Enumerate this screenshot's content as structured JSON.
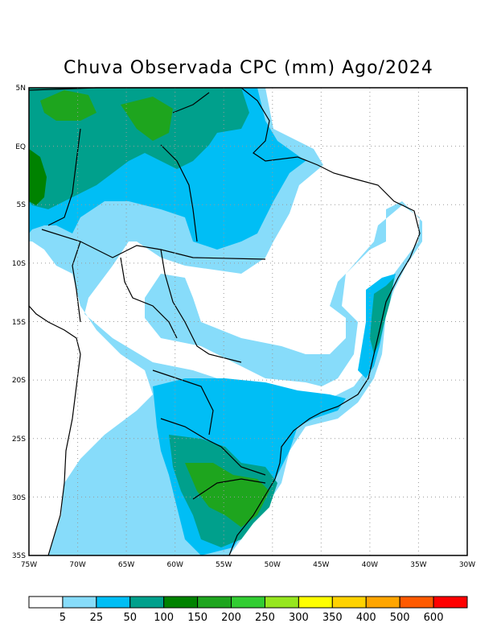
{
  "title": "Chuva Observada CPC (mm) Ago/2024",
  "map": {
    "lat_labels": [
      "5N",
      "EQ",
      "5S",
      "10S",
      "15S",
      "20S",
      "25S",
      "30S",
      "35S"
    ],
    "lon_labels": [
      "75W",
      "70W",
      "65W",
      "60W",
      "55W",
      "50W",
      "45W",
      "40W",
      "35W",
      "30W"
    ],
    "extent": {
      "lon_min": -75,
      "lon_max": -30,
      "lat_min": -35,
      "lat_max": 5
    }
  },
  "legend": {
    "thresholds": [
      "5",
      "25",
      "50",
      "100",
      "150",
      "200",
      "250",
      "300",
      "350",
      "400",
      "500",
      "600"
    ],
    "colors": [
      "#ffffff",
      "#87dcfa",
      "#00bef5",
      "#00a08c",
      "#008200",
      "#1ea51e",
      "#32cd32",
      "#96e61e",
      "#ffff00",
      "#ffd200",
      "#ffa500",
      "#ff5a00",
      "#ff0000"
    ]
  }
}
